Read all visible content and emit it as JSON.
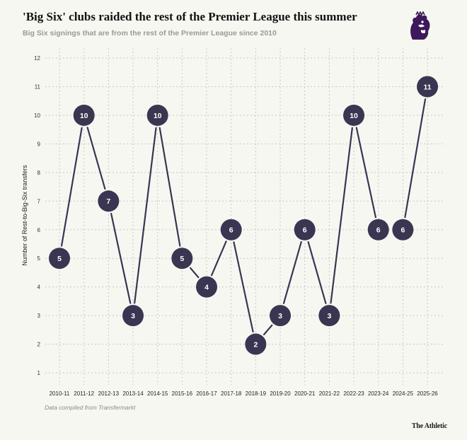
{
  "header": {
    "title": "'Big Six' clubs raided the rest of the Premier League this summer",
    "subtitle": "Big Six signings that are from the rest of the Premier League since 2010"
  },
  "footer": {
    "source": "Data compiled from Transfermarkt",
    "brand": "The Athletic"
  },
  "colors": {
    "marker": "#3a3551",
    "background": "#f7f7f2"
  },
  "logo": {
    "icon": "premier-league-lion-logo",
    "color": "#3d195b"
  },
  "chart_data": {
    "type": "line",
    "title": "'Big Six' clubs raided the rest of the Premier League this summer",
    "subtitle": "Big Six signings that are from the rest of the Premier League since 2010",
    "xlabel": "",
    "ylabel": "Number of Rest-to-Big-Six transfers",
    "categories": [
      "2010-11",
      "2011-12",
      "2012-13",
      "2013-14",
      "2014-15",
      "2015-16",
      "2016-17",
      "2017-18",
      "2018-19",
      "2019-20",
      "2020-21",
      "2021-22",
      "2022-23",
      "2023-24",
      "2024-25",
      "2025-26"
    ],
    "values": [
      5,
      10,
      7,
      3,
      10,
      5,
      4,
      6,
      2,
      3,
      6,
      3,
      10,
      6,
      6,
      11
    ],
    "ylim": [
      0.5,
      12.5
    ],
    "yticks": [
      1,
      2,
      3,
      4,
      5,
      6,
      7,
      8,
      9,
      10,
      11,
      12
    ],
    "grid": true,
    "data_labels": true
  }
}
